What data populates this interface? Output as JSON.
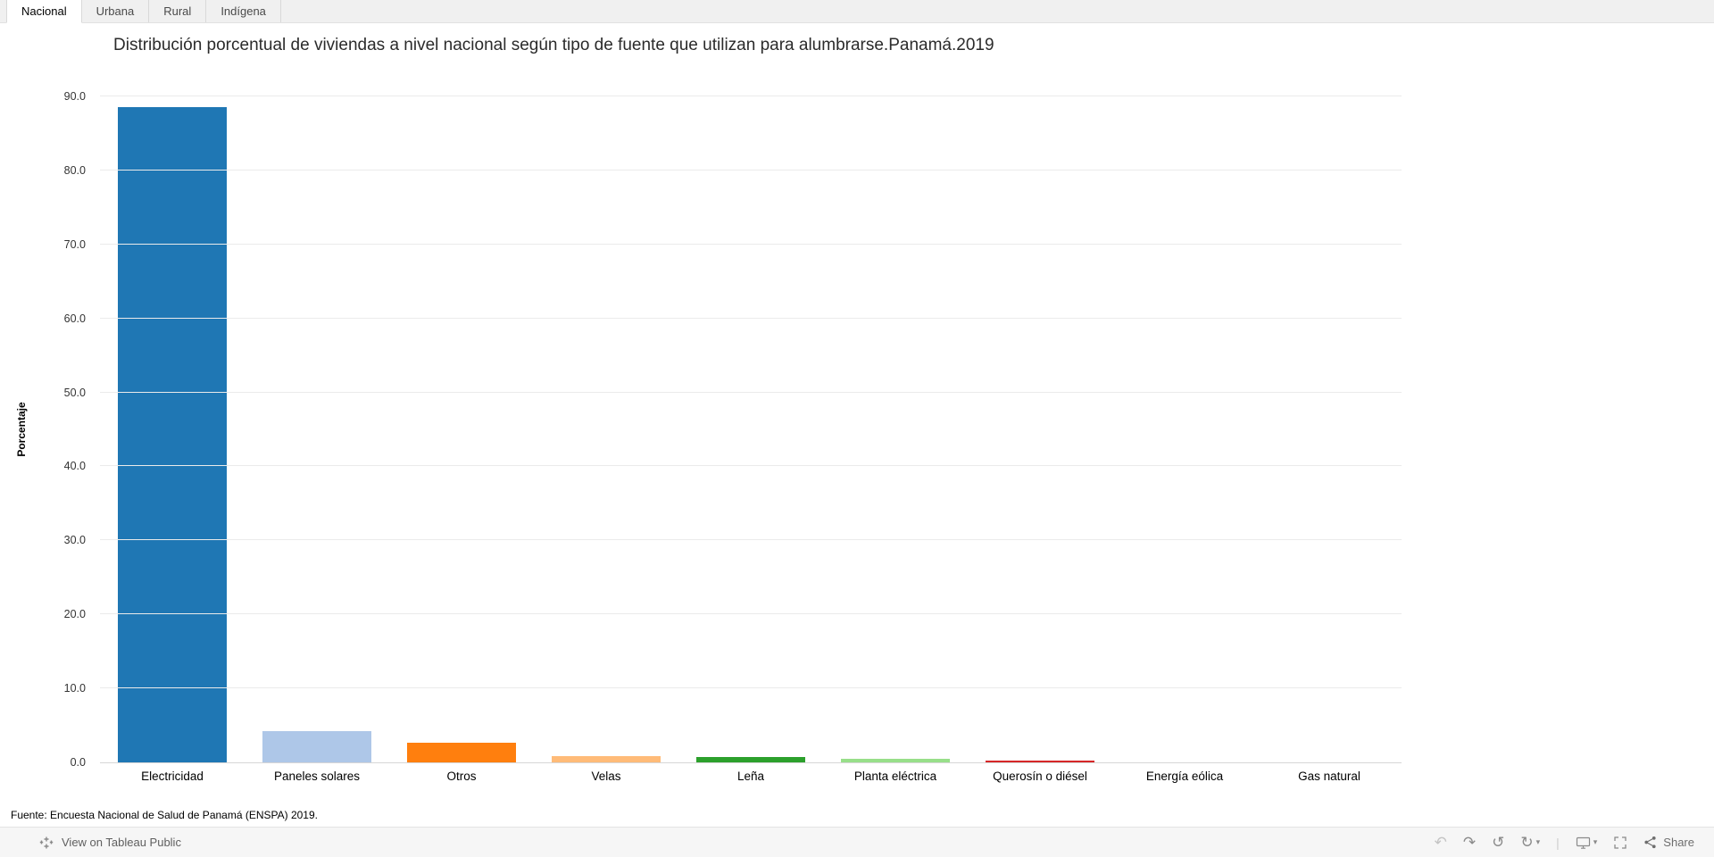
{
  "tabs": [
    {
      "label": "Nacional",
      "active": true
    },
    {
      "label": "Urbana",
      "active": false
    },
    {
      "label": "Rural",
      "active": false
    },
    {
      "label": "Indígena",
      "active": false
    }
  ],
  "chart_data": {
    "type": "bar",
    "title": "Distribución porcentual de viviendas a nivel nacional según tipo de fuente que utilizan para alumbrarse.Panamá.2019",
    "xlabel": "",
    "ylabel": "Porcentaje",
    "ylim": [
      0,
      90
    ],
    "ytick_step": 10,
    "grid": true,
    "categories": [
      "Electricidad",
      "Paneles solares",
      "Otros",
      "Velas",
      "Leña",
      "Planta eléctrica",
      "Querosín o diésel",
      "Energía eólica",
      "Gas natural"
    ],
    "values": [
      88.5,
      4.2,
      2.7,
      0.9,
      0.7,
      0.5,
      0.2,
      0.0,
      0.0
    ],
    "colors": [
      "#1f77b4",
      "#aec7e8",
      "#ff7f0e",
      "#ffbb78",
      "#2ca02c",
      "#98df8a",
      "#d62728",
      "#ff9896",
      "#9467bd"
    ]
  },
  "footer": {
    "source": "Fuente: Encuesta Nacional de Salud de Panamá (ENSPA) 2019."
  },
  "toolbar": {
    "view_label": "View on Tableau Public",
    "share_label": "Share",
    "icons": [
      {
        "name": "tableau-logo-icon",
        "glyph": "svg-plus-marks"
      },
      {
        "name": "undo-icon",
        "glyph": "↶",
        "disabled": true
      },
      {
        "name": "redo-icon",
        "glyph": "↷"
      },
      {
        "name": "reset-icon",
        "glyph": "↺"
      },
      {
        "name": "refresh-menu-icon",
        "glyph": "↻▾"
      },
      {
        "name": "device-preview-menu-icon",
        "glyph": "monitor▾"
      },
      {
        "name": "fullscreen-icon",
        "glyph": "corner-brackets"
      },
      {
        "name": "share-icon",
        "glyph": "share-nodes"
      }
    ]
  }
}
